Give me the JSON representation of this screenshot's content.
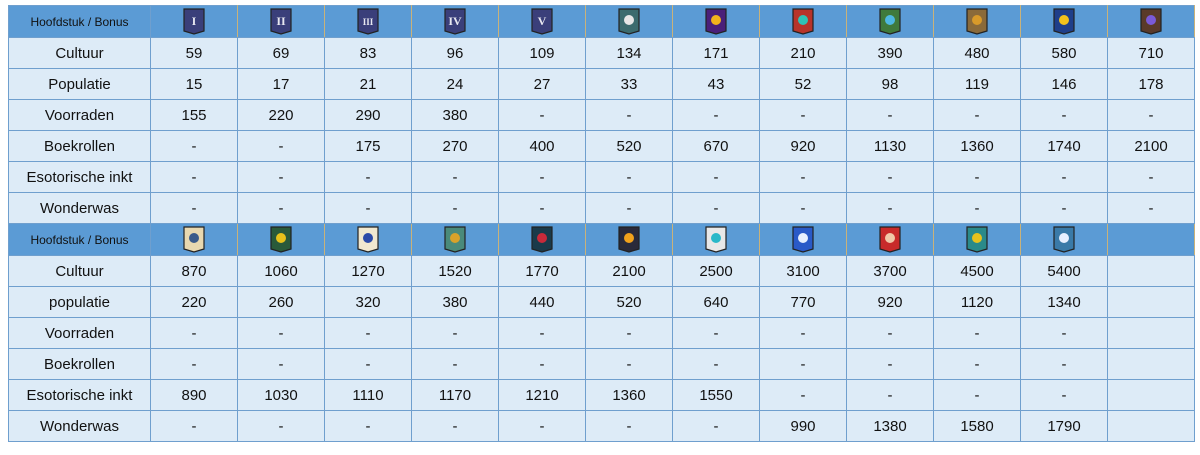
{
  "sections": [
    {
      "header": "Hoofdstuk / Bonus",
      "icons": [
        {
          "name": "chapter-1-icon",
          "label": "I",
          "bg": "#3a3f7a",
          "fg": "#e8e8f0"
        },
        {
          "name": "chapter-2-icon",
          "label": "II",
          "bg": "#3a3f7a",
          "fg": "#e8e8f0"
        },
        {
          "name": "chapter-3-icon",
          "label": "III",
          "bg": "#3a3f7a",
          "fg": "#e8e8f0"
        },
        {
          "name": "chapter-4-icon",
          "label": "IV",
          "bg": "#3a3f7a",
          "fg": "#e8e8f0"
        },
        {
          "name": "chapter-5-icon",
          "label": "V",
          "bg": "#3a3f7a",
          "fg": "#e8e8f0"
        },
        {
          "name": "chapter-6-icon",
          "bg": "#3b6b6e",
          "fg": "#e6e6e6"
        },
        {
          "name": "chapter-7-icon",
          "bg": "#4a1f7a",
          "fg": "#f2b21c"
        },
        {
          "name": "chapter-8-icon",
          "bg": "#b8342a",
          "fg": "#2ec4b6"
        },
        {
          "name": "chapter-9-icon",
          "bg": "#3f7a3a",
          "fg": "#4fb8e0"
        },
        {
          "name": "chapter-10-icon",
          "bg": "#8a6a3a",
          "fg": "#d89a2a"
        },
        {
          "name": "chapter-11-icon",
          "bg": "#1f3f8a",
          "fg": "#f2c21c"
        },
        {
          "name": "chapter-12-icon",
          "bg": "#5a3a2a",
          "fg": "#7a5ad8"
        }
      ],
      "rows": [
        {
          "label": "Cultuur",
          "values": [
            "59",
            "69",
            "83",
            "96",
            "109",
            "134",
            "171",
            "210",
            "390",
            "480",
            "580",
            "710"
          ]
        },
        {
          "label": "Populatie",
          "values": [
            "15",
            "17",
            "21",
            "24",
            "27",
            "33",
            "43",
            "52",
            "98",
            "119",
            "146",
            "178"
          ]
        },
        {
          "label": "Voorraden",
          "values": [
            "155",
            "220",
            "290",
            "380",
            "-",
            "-",
            "-",
            "-",
            "-",
            "-",
            "-",
            "-"
          ]
        },
        {
          "label": "Boekrollen",
          "values": [
            "-",
            "-",
            "175",
            "270",
            "400",
            "520",
            "670",
            "920",
            "1130",
            "1360",
            "1740",
            "2100"
          ]
        },
        {
          "label": "Esotorische inkt",
          "values": [
            "-",
            "-",
            "-",
            "-",
            "-",
            "-",
            "-",
            "-",
            "-",
            "-",
            "-",
            "-"
          ]
        },
        {
          "label": "Wonderwas",
          "values": [
            "-",
            "-",
            "-",
            "-",
            "-",
            "-",
            "-",
            "-",
            "-",
            "-",
            "-",
            "-"
          ]
        }
      ]
    },
    {
      "header": "Hoofdstuk / Bonus",
      "icons": [
        {
          "name": "chapter-13-icon",
          "bg": "#e8d8b0",
          "fg": "#3a5a8a"
        },
        {
          "name": "chapter-14-icon",
          "bg": "#2a5a3a",
          "fg": "#e8c21c"
        },
        {
          "name": "chapter-15-icon",
          "bg": "#f0e8d0",
          "fg": "#2a4aa8"
        },
        {
          "name": "chapter-16-icon",
          "bg": "#4a8a7a",
          "fg": "#d8a22a"
        },
        {
          "name": "chapter-17-icon",
          "bg": "#1a3a4a",
          "fg": "#c82a3a"
        },
        {
          "name": "chapter-18-icon",
          "bg": "#2a2a3a",
          "fg": "#f2a21c"
        },
        {
          "name": "chapter-19-icon",
          "bg": "#e8e8e8",
          "fg": "#2ab8c8"
        },
        {
          "name": "chapter-20-icon",
          "bg": "#2a5ac8",
          "fg": "#e8f0ff"
        },
        {
          "name": "chapter-21-icon",
          "bg": "#c82a2a",
          "fg": "#f0c8a8"
        },
        {
          "name": "chapter-22-icon",
          "bg": "#2a8a8a",
          "fg": "#e8c21c"
        },
        {
          "name": "chapter-23-icon",
          "bg": "#3a7aa8",
          "fg": "#e8f0ff"
        }
      ],
      "rows": [
        {
          "label": "Cultuur",
          "values": [
            "870",
            "1060",
            "1270",
            "1520",
            "1770",
            "2100",
            "2500",
            "3100",
            "3700",
            "4500",
            "5400",
            ""
          ]
        },
        {
          "label": "populatie",
          "values": [
            "220",
            "260",
            "320",
            "380",
            "440",
            "520",
            "640",
            "770",
            "920",
            "1120",
            "1340",
            ""
          ]
        },
        {
          "label": "Voorraden",
          "values": [
            "-",
            "-",
            "-",
            "-",
            "-",
            "-",
            "-",
            "-",
            "-",
            "-",
            "-",
            ""
          ]
        },
        {
          "label": "Boekrollen",
          "values": [
            "-",
            "-",
            "-",
            "-",
            "-",
            "-",
            "-",
            "-",
            "-",
            "-",
            "-",
            ""
          ]
        },
        {
          "label": "Esotorische inkt",
          "values": [
            "890",
            "1030",
            "1110",
            "1170",
            "1210",
            "1360",
            "1550",
            "-",
            "-",
            "-",
            "-",
            ""
          ]
        },
        {
          "label": "Wonderwas",
          "values": [
            "-",
            "-",
            "-",
            "-",
            "-",
            "-",
            "-",
            "990",
            "1380",
            "1580",
            "1790",
            ""
          ]
        }
      ]
    }
  ]
}
